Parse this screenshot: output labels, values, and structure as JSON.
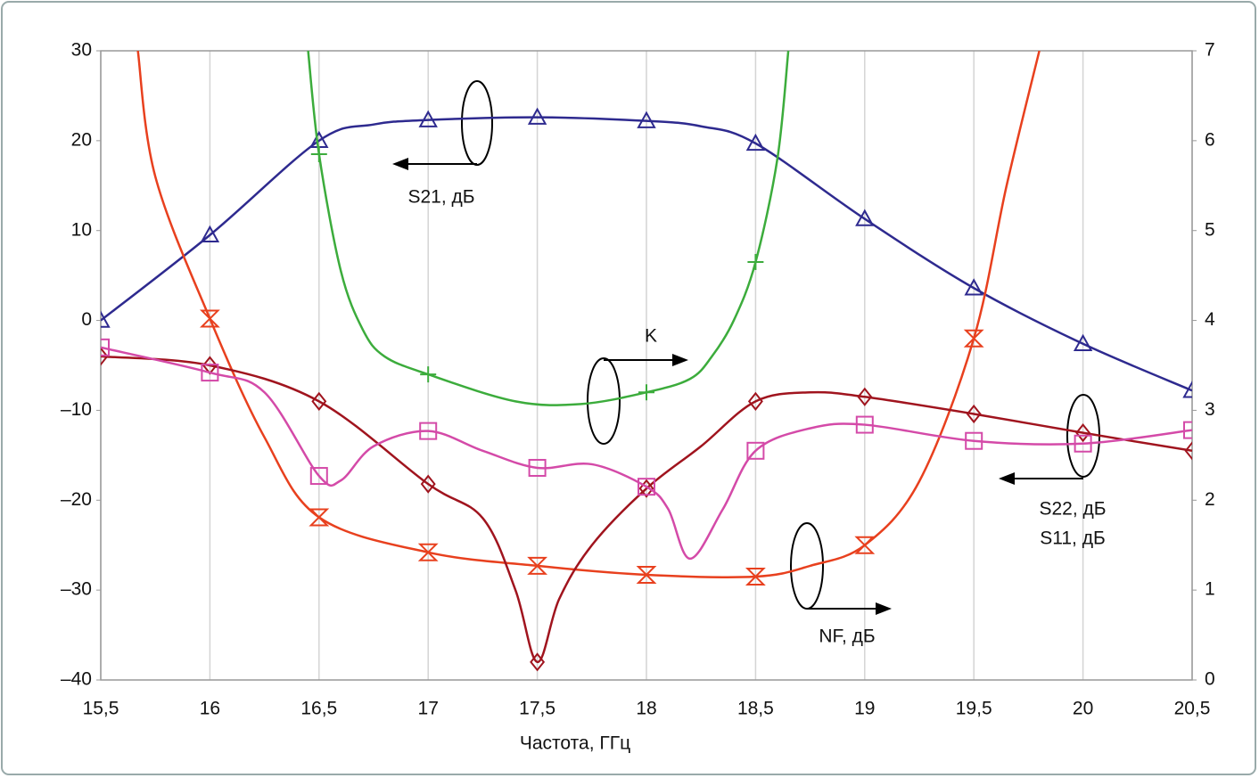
{
  "chart_data": {
    "type": "line",
    "xlabel": "Частота, ГГц",
    "xlim": [
      15.5,
      20.5
    ],
    "xticks": [
      {
        "value": 15.5,
        "label": "15,5"
      },
      16,
      {
        "value": 16.5,
        "label": "16,5"
      },
      17,
      {
        "value": 17.5,
        "label": "17,5"
      },
      18,
      {
        "value": 18.5,
        "label": "18,5"
      },
      19,
      {
        "value": 19.5,
        "label": "19,5"
      },
      20,
      {
        "value": 20.5,
        "label": "20,5"
      }
    ],
    "ylim": [
      -40,
      30
    ],
    "yticks": [
      {
        "value": -40,
        "label": "–40"
      },
      {
        "value": -30,
        "label": "–30"
      },
      {
        "value": -20,
        "label": "–20"
      },
      {
        "value": -10,
        "label": "–10"
      },
      0,
      10,
      20,
      30
    ],
    "y2lim": [
      0,
      7
    ],
    "y2ticks": [
      0,
      1,
      2,
      3,
      4,
      5,
      6,
      7
    ],
    "grid": "x",
    "series": [
      {
        "name": "S21, дБ",
        "color": "#2e2a8f",
        "marker": "triangle",
        "x": [
          15.5,
          16,
          16.5,
          16.75,
          17,
          17.5,
          18,
          18.25,
          18.5,
          19,
          19.5,
          20,
          20.5
        ],
        "values": [
          0,
          9.5,
          20,
          21.8,
          22.3,
          22.6,
          22.2,
          21.6,
          19.7,
          11.3,
          3.6,
          -2.6,
          -7.8
        ]
      },
      {
        "name": "K",
        "color": "#3cac3c",
        "marker": "plus",
        "axis": "y2",
        "x": [
          16.45,
          16.5,
          16.6,
          16.7,
          16.8,
          17,
          17.4,
          17.7,
          18,
          18.2,
          18.3,
          18.4,
          18.5,
          18.6,
          18.65
        ],
        "values": [
          7,
          5.85,
          4.55,
          3.9,
          3.6,
          3.4,
          3.1,
          3.07,
          3.2,
          3.35,
          3.6,
          4.0,
          4.65,
          5.8,
          7
        ]
      },
      {
        "name": "NF, дБ",
        "color": "#e8401e",
        "marker": "hourglass",
        "axis": "y2",
        "x": [
          15.67,
          15.75,
          16,
          16.25,
          16.5,
          17,
          17.5,
          18,
          18.5,
          18.75,
          19,
          19.25,
          19.5,
          19.65,
          19.8
        ],
        "values": [
          7,
          5.6,
          4.02,
          2.7,
          1.81,
          1.42,
          1.27,
          1.17,
          1.15,
          1.27,
          1.5,
          2.21,
          3.8,
          5.5,
          7
        ]
      },
      {
        "name": "S22, дБ",
        "color": "#a0141e",
        "marker": "diamond",
        "x": [
          15.5,
          16,
          16.5,
          17,
          17.25,
          17.4,
          17.5,
          17.6,
          17.75,
          18,
          18.25,
          18.5,
          18.75,
          19,
          19.5,
          20,
          20.5
        ],
        "values": [
          -4,
          -5,
          -9,
          -18.2,
          -22,
          -30,
          -38,
          -31,
          -25,
          -18.7,
          -14,
          -9,
          -8,
          -8.5,
          -10.4,
          -12.5,
          -14.5
        ]
      },
      {
        "name": "S11, дБ",
        "color": "#d44aa8",
        "marker": "square",
        "x": [
          15.5,
          16,
          16.25,
          16.5,
          16.6,
          16.75,
          17,
          17.25,
          17.5,
          17.75,
          18,
          18.1,
          18.2,
          18.35,
          18.5,
          18.75,
          19,
          19.5,
          20,
          20.5
        ],
        "values": [
          -3,
          -5.8,
          -8,
          -17.3,
          -17.8,
          -14,
          -12.3,
          -14.5,
          -16.4,
          -16,
          -18.5,
          -21,
          -26.5,
          -21,
          -14.5,
          -12,
          -11.6,
          -13.4,
          -13.7,
          -12.2
        ]
      }
    ]
  }
}
